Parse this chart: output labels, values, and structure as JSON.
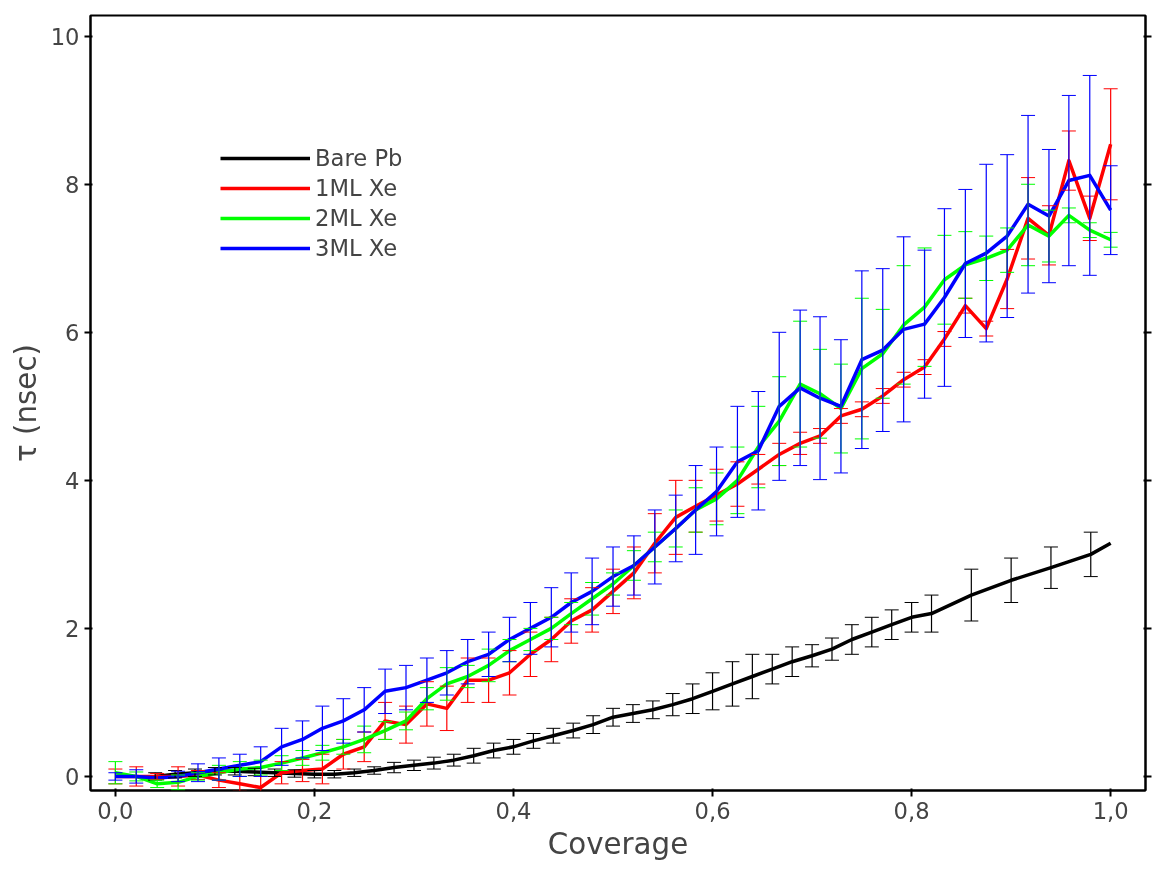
{
  "chart_data": {
    "type": "line",
    "xlabel": "Coverage",
    "ylabel": "τ (nsec)",
    "xlim": [
      -0.025,
      1.035
    ],
    "ylim": [
      -0.19,
      10.28
    ],
    "xticks": [
      {
        "value": 0,
        "label": "0,0"
      },
      {
        "value": 0.2,
        "label": "0,2"
      },
      {
        "value": 0.4,
        "label": "0,4"
      },
      {
        "value": 0.6,
        "label": "0,6"
      },
      {
        "value": 0.8,
        "label": "0,8"
      },
      {
        "value": 1.0,
        "label": "1,0"
      }
    ],
    "yticks": [
      0,
      2,
      4,
      6,
      8,
      10
    ],
    "grid": false,
    "legend": "top left",
    "marker": "none",
    "line_style": "solid",
    "series": [
      {
        "name": "Bare Pb",
        "color": "#000000",
        "x": [
          0.04,
          0.06,
          0.08,
          0.1,
          0.12,
          0.14,
          0.16,
          0.18,
          0.2,
          0.22,
          0.24,
          0.26,
          0.28,
          0.3,
          0.32,
          0.34,
          0.36,
          0.38,
          0.4,
          0.42,
          0.44,
          0.46,
          0.48,
          0.5,
          0.52,
          0.54,
          0.56,
          0.58,
          0.6,
          0.62,
          0.64,
          0.66,
          0.68,
          0.7,
          0.72,
          0.74,
          0.76,
          0.78,
          0.8,
          0.82,
          0.86,
          0.9,
          0.94,
          0.98,
          1.0
        ],
        "values": [
          0.0,
          0.03,
          0.05,
          0.07,
          0.07,
          0.06,
          0.05,
          0.04,
          0.03,
          0.03,
          0.05,
          0.08,
          0.12,
          0.15,
          0.18,
          0.22,
          0.28,
          0.35,
          0.4,
          0.48,
          0.55,
          0.62,
          0.7,
          0.8,
          0.85,
          0.9,
          0.97,
          1.05,
          1.15,
          1.25,
          1.35,
          1.45,
          1.55,
          1.63,
          1.72,
          1.85,
          1.95,
          2.05,
          2.15,
          2.2,
          2.45,
          2.65,
          2.82,
          3.0,
          3.15
        ],
        "errors": [
          0.05,
          0.05,
          0.05,
          0.05,
          0.05,
          0.05,
          0.05,
          0.05,
          0.05,
          0.05,
          0.05,
          0.05,
          0.07,
          0.07,
          0.08,
          0.08,
          0.1,
          0.1,
          0.1,
          0.1,
          0.1,
          0.1,
          0.12,
          0.12,
          0.12,
          0.12,
          0.15,
          0.2,
          0.25,
          0.3,
          0.3,
          0.2,
          0.2,
          0.15,
          0.15,
          0.2,
          0.2,
          0.2,
          0.2,
          0.25,
          0.35,
          0.3,
          0.28,
          0.3,
          null
        ]
      },
      {
        "name": "1ML Xe",
        "color": "#ff0000",
        "x": [
          0,
          0.021,
          0.042,
          0.063,
          0.083,
          0.104,
          0.125,
          0.146,
          0.167,
          0.188,
          0.208,
          0.229,
          0.25,
          0.271,
          0.292,
          0.313,
          0.333,
          0.354,
          0.375,
          0.396,
          0.417,
          0.438,
          0.458,
          0.479,
          0.5,
          0.521,
          0.542,
          0.563,
          0.583,
          0.604,
          0.625,
          0.646,
          0.667,
          0.688,
          0.708,
          0.729,
          0.75,
          0.771,
          0.792,
          0.813,
          0.833,
          0.854,
          0.875,
          0.896,
          0.917,
          0.938,
          0.958,
          0.979,
          1.0
        ],
        "values": [
          0.0,
          0.0,
          0.0,
          0.0,
          0.02,
          -0.05,
          -0.1,
          -0.15,
          0.05,
          0.08,
          0.1,
          0.3,
          0.4,
          0.75,
          0.7,
          0.98,
          0.92,
          1.3,
          1.3,
          1.4,
          1.65,
          1.85,
          2.1,
          2.25,
          2.5,
          2.75,
          3.15,
          3.5,
          3.65,
          3.8,
          3.95,
          4.15,
          4.35,
          4.5,
          4.6,
          4.87,
          4.96,
          5.14,
          5.36,
          5.53,
          5.91,
          6.36,
          6.05,
          6.72,
          7.54,
          7.31,
          8.32,
          7.54,
          8.54
        ],
        "errors": [
          0.1,
          0.13,
          0.04,
          0.13,
          0.06,
          0.1,
          0.1,
          0.15,
          0.15,
          0.15,
          0.2,
          0.2,
          0.2,
          0.25,
          0.25,
          0.3,
          0.3,
          0.3,
          0.3,
          0.3,
          0.3,
          0.3,
          0.3,
          0.3,
          0.3,
          0.35,
          0.4,
          0.5,
          0.35,
          0.35,
          0.3,
          0.2,
          0.15,
          0.15,
          0.1,
          0.1,
          0.1,
          0.1,
          0.1,
          0.1,
          0.1,
          0.1,
          0.1,
          0.4,
          0.55,
          0.4,
          0.4,
          0.3,
          0.75
        ]
      },
      {
        "name": "2ML Xe",
        "color": "#00ff00",
        "x": [
          0,
          0.021,
          0.042,
          0.063,
          0.083,
          0.104,
          0.125,
          0.146,
          0.167,
          0.188,
          0.208,
          0.229,
          0.25,
          0.271,
          0.292,
          0.313,
          0.333,
          0.354,
          0.375,
          0.396,
          0.417,
          0.438,
          0.458,
          0.479,
          0.5,
          0.521,
          0.542,
          0.563,
          0.583,
          0.604,
          0.625,
          0.646,
          0.667,
          0.688,
          0.708,
          0.729,
          0.75,
          0.771,
          0.792,
          0.813,
          0.833,
          0.854,
          0.875,
          0.896,
          0.917,
          0.938,
          0.958,
          0.979,
          1.0
        ],
        "values": [
          0.05,
          0.0,
          -0.1,
          -0.08,
          0.0,
          0.05,
          0.1,
          0.12,
          0.18,
          0.25,
          0.32,
          0.4,
          0.5,
          0.62,
          0.75,
          1.05,
          1.25,
          1.35,
          1.5,
          1.7,
          1.85,
          2.0,
          2.2,
          2.4,
          2.6,
          2.85,
          3.1,
          3.35,
          3.6,
          3.75,
          4.0,
          4.45,
          4.8,
          5.3,
          5.17,
          4.97,
          5.51,
          5.71,
          6.1,
          6.34,
          6.71,
          6.91,
          7.0,
          7.11,
          7.45,
          7.3,
          7.58,
          7.38,
          7.25
        ],
        "errors": [
          0.15,
          0.06,
          0.05,
          0.1,
          0.05,
          0.1,
          0.1,
          0.1,
          0.1,
          0.1,
          0.1,
          0.1,
          0.18,
          0.12,
          0.12,
          0.15,
          0.22,
          0.15,
          0.22,
          0.15,
          0.15,
          0.15,
          0.15,
          0.22,
          0.15,
          0.2,
          0.2,
          0.25,
          0.3,
          0.35,
          0.45,
          0.55,
          0.6,
          0.85,
          0.6,
          0.6,
          0.95,
          0.6,
          0.8,
          0.8,
          0.6,
          0.45,
          0.3,
          0.3,
          0.55,
          0.35,
          0.1,
          0.1,
          0.1
        ]
      },
      {
        "name": "3ML Xe",
        "color": "#0000ff",
        "x": [
          0,
          0.021,
          0.042,
          0.063,
          0.083,
          0.104,
          0.125,
          0.146,
          0.167,
          0.188,
          0.208,
          0.229,
          0.25,
          0.271,
          0.292,
          0.313,
          0.333,
          0.354,
          0.375,
          0.396,
          0.417,
          0.438,
          0.458,
          0.479,
          0.5,
          0.521,
          0.542,
          0.563,
          0.583,
          0.604,
          0.625,
          0.646,
          0.667,
          0.688,
          0.708,
          0.729,
          0.75,
          0.771,
          0.792,
          0.813,
          0.833,
          0.854,
          0.875,
          0.896,
          0.917,
          0.938,
          0.958,
          0.979,
          1.0
        ],
        "values": [
          0.0,
          0.0,
          -0.02,
          0.0,
          0.05,
          0.1,
          0.15,
          0.2,
          0.4,
          0.5,
          0.65,
          0.75,
          0.9,
          1.15,
          1.2,
          1.3,
          1.4,
          1.55,
          1.65,
          1.85,
          2.0,
          2.15,
          2.35,
          2.5,
          2.7,
          2.85,
          3.1,
          3.35,
          3.6,
          3.85,
          4.25,
          4.4,
          5.0,
          5.25,
          5.11,
          5.0,
          5.63,
          5.76,
          6.04,
          6.11,
          6.47,
          6.93,
          7.07,
          7.3,
          7.73,
          7.57,
          8.05,
          8.12,
          7.65
        ],
        "errors": [
          0.05,
          0.09,
          null,
          0.07,
          0.12,
          0.15,
          0.15,
          0.2,
          0.25,
          0.25,
          0.3,
          0.3,
          0.3,
          0.3,
          0.3,
          0.3,
          0.3,
          0.3,
          0.3,
          0.3,
          0.35,
          0.4,
          0.4,
          0.45,
          0.4,
          0.4,
          0.5,
          0.45,
          0.6,
          0.6,
          0.75,
          0.8,
          1.0,
          1.05,
          1.1,
          0.9,
          1.2,
          1.1,
          1.25,
          1.0,
          1.2,
          1.0,
          1.2,
          1.1,
          1.2,
          0.9,
          1.15,
          1.35,
          0.6
        ]
      }
    ]
  }
}
